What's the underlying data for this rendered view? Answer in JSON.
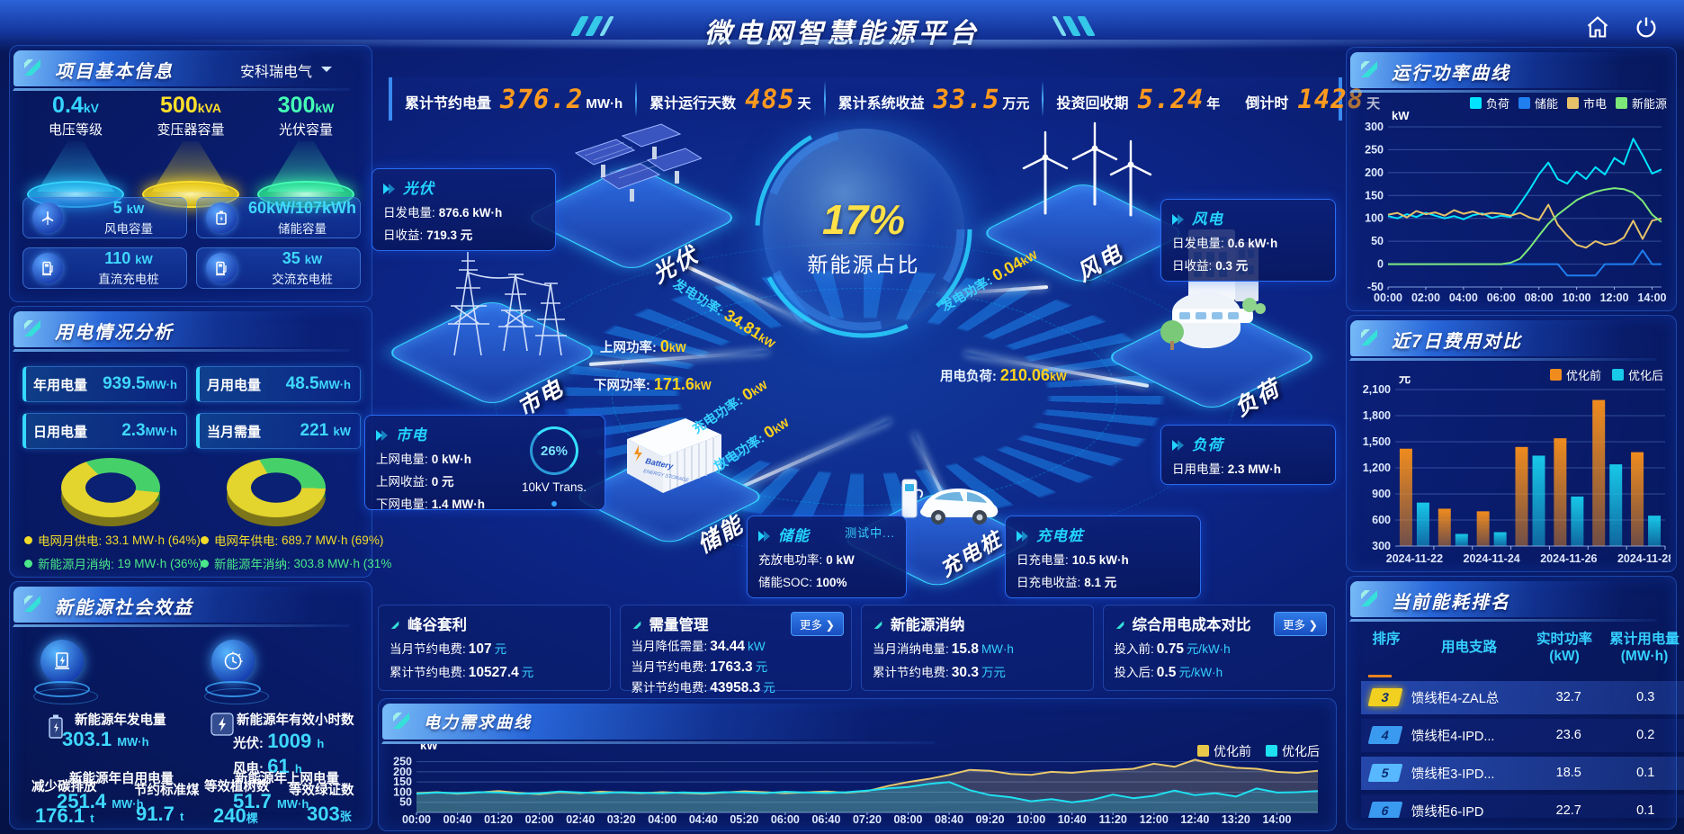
{
  "header": {
    "title": "微电网智慧能源平台"
  },
  "kpi_bar": [
    {
      "label": "累计节约电量",
      "value": "376.2",
      "unit": "MW·h"
    },
    {
      "label": "累计运行天数",
      "value": "485",
      "unit": "天"
    },
    {
      "label": "累计系统收益",
      "value": "33.5",
      "unit": "万元"
    },
    {
      "label": "投资回收期",
      "value": "5.24",
      "unit": "年"
    },
    {
      "label": "倒计时",
      "value": "1428",
      "unit": "天"
    }
  ],
  "project_info": {
    "title": "项目基本信息",
    "company": "安科瑞电气",
    "spotlights": [
      {
        "value": "0.4",
        "unit": "kV",
        "label": "电压等级",
        "color": "#35d4ff"
      },
      {
        "value": "500",
        "unit": "kVA",
        "label": "变压器容量",
        "color": "#ffe02a"
      },
      {
        "value": "300",
        "unit": "kW",
        "label": "光伏容量",
        "color": "#45ffb5"
      }
    ],
    "cards": [
      {
        "value": "5",
        "unit": "kW",
        "label": "风电容量"
      },
      {
        "value": "60kW/107kWh",
        "unit": "",
        "label": "储能容量"
      },
      {
        "value": "110",
        "unit": "kW",
        "label": "直流充电桩"
      },
      {
        "value": "35",
        "unit": "kW",
        "label": "交流充电桩"
      }
    ]
  },
  "power_analysis": {
    "title": "用电情况分析",
    "stats": [
      {
        "label": "年用电量",
        "value": "939.5",
        "unit": "MW·h"
      },
      {
        "label": "月用电量",
        "value": "48.5",
        "unit": "MW·h"
      },
      {
        "label": "日用电量",
        "value": "2.3",
        "unit": "MW·h"
      },
      {
        "label": "当月需量",
        "value": "221",
        "unit": "kW"
      }
    ],
    "month_donut": {
      "grid_pct": 64,
      "renewable_pct": 36
    },
    "year_donut": {
      "grid_pct": 69,
      "renewable_pct": 31
    },
    "legends": [
      {
        "label": "电网月供电:",
        "value": "33.1 MW·h (64%)",
        "color": "#f2dc2a"
      },
      {
        "label": "电网年供电:",
        "value": "689.7 MW·h (69%)",
        "color": "#f2dc2a"
      },
      {
        "label": "新能源月消纳:",
        "value": "19 MW·h (36%)",
        "color": "#4ae88a"
      },
      {
        "label": "新能源年消纳:",
        "value": "303.8 MW·h (31%",
        "color": "#4ae88a"
      }
    ]
  },
  "social_benefit": {
    "title": "新能源社会效益",
    "gen": {
      "label": "新能源年发电量",
      "value": "303.1",
      "unit": "MW·h"
    },
    "hours": {
      "label": "新能源年有效小时数",
      "pv_label": "光伏:",
      "pv_value": "1009",
      "pv_unit": "h",
      "wind_label": "风电:",
      "wind_value": "61",
      "wind_unit": "h"
    },
    "self_use": {
      "label": "新能源年自用电量",
      "value": "251.4",
      "unit": "MW·h"
    },
    "co2": {
      "label": "减少碳排放",
      "value": "176.1",
      "unit": "t"
    },
    "coal": {
      "label": "节约标准煤",
      "value": "91.7",
      "unit": "t"
    },
    "to_grid": {
      "label": "新能源年上网电量",
      "value": "51.7",
      "unit": "MW·h"
    },
    "trees": {
      "label": "等效植树数",
      "value": "240",
      "unit": "棵"
    },
    "certs": {
      "label": "等效绿证数",
      "value": "303",
      "unit": "张"
    }
  },
  "diagram": {
    "center": {
      "value": "17%",
      "label": "新能源占比"
    },
    "nodes": {
      "pv": "光伏",
      "wind": "风电",
      "grid": "市电",
      "storage": "储能",
      "charger": "充电桩",
      "load": "负荷"
    },
    "boxes": {
      "pv": {
        "title": "光伏",
        "lines": [
          {
            "k": "日发电量:",
            "v": "876.6 kW·h"
          },
          {
            "k": "日收益:",
            "v": "719.3 元"
          }
        ]
      },
      "wind": {
        "title": "风电",
        "lines": [
          {
            "k": "日发电量:",
            "v": "0.6 kW·h"
          },
          {
            "k": "日收益:",
            "v": "0.3 元"
          }
        ]
      },
      "grid": {
        "title": "市电",
        "lines": [
          {
            "k": "上网电量:",
            "v": "0 kW·h"
          },
          {
            "k": "上网收益:",
            "v": "0 元"
          },
          {
            "k": "下网电量:",
            "v": "1.4 MW·h"
          }
        ]
      },
      "storage": {
        "title": "储能",
        "badge": "测试中...",
        "lines": [
          {
            "k": "充放电功率:",
            "v": "0 kW"
          },
          {
            "k": "储能SOC:",
            "v": "100%"
          }
        ]
      },
      "charger": {
        "title": "充电桩",
        "lines": [
          {
            "k": "日充电量:",
            "v": "10.5 kW·h"
          },
          {
            "k": "日充电收益:",
            "v": "8.1 元"
          }
        ]
      },
      "load": {
        "title": "负荷",
        "lines": [
          {
            "k": "日用电量:",
            "v": "2.3 MW·h"
          }
        ]
      }
    },
    "flows": {
      "pv_gen": {
        "label": "发电功率:",
        "value": "34.81",
        "unit": "kW"
      },
      "wind_gen": {
        "label": "发电功率:",
        "value": "0.04",
        "unit": "kW"
      },
      "up_grid": {
        "label": "上网功率:",
        "value": "0",
        "unit": "kW"
      },
      "down_grid": {
        "label": "下网功率:",
        "value": "171.6",
        "unit": "kW"
      },
      "load_power": {
        "label": "用电负荷:",
        "value": "210.06",
        "unit": "kW"
      },
      "charge": {
        "label": "充电功率:",
        "value": "0",
        "unit": "kW"
      },
      "discharge": {
        "label": "放电功率:",
        "value": "0",
        "unit": "kW"
      }
    },
    "transformer": {
      "pct": "26%",
      "label": "10kV Trans."
    }
  },
  "mini_panels": [
    {
      "title": "峰谷套利",
      "rows": [
        {
          "k": "当月节约电费:",
          "v": "107",
          "u": "元"
        },
        {
          "k": "累计节约电费:",
          "v": "10527.4",
          "u": "元"
        }
      ]
    },
    {
      "title": "需量管理",
      "more": "更多",
      "rows": [
        {
          "k": "当月降低需量:",
          "v": "34.44",
          "u": "kW"
        },
        {
          "k": "当月节约电费:",
          "v": "1763.3",
          "u": "元"
        },
        {
          "k": "累计节约电费:",
          "v": "43958.3",
          "u": "元"
        }
      ]
    },
    {
      "title": "新能源消纳",
      "rows": [
        {
          "k": "当月消纳电量:",
          "v": "15.8",
          "u": "MW·h"
        },
        {
          "k": "累计节约电费:",
          "v": "30.3",
          "u": "万元"
        }
      ]
    },
    {
      "title": "综合用电成本对比",
      "more": "更多",
      "rows": [
        {
          "k": "投入前:",
          "v": "0.75",
          "u": "元/kW·h"
        },
        {
          "k": "投入后:",
          "v": "0.5",
          "u": "元/kW·h"
        }
      ]
    }
  ],
  "panel_titles": {
    "run_power": "运行功率曲线",
    "cost_compare": "近7日费用对比",
    "ranking": "当前能耗排名",
    "demand": "电力需求曲线"
  },
  "ranking": {
    "headers": {
      "rank": "排序",
      "branch": "用电支路",
      "power": "实时功率",
      "power_unit": "(kW)",
      "energy": "累计用电量",
      "energy_unit": "(MW·h)"
    },
    "rows": [
      {
        "rank": "3",
        "branch": "馈线柜4-ZAL总",
        "power": "32.7",
        "energy": "0.3"
      },
      {
        "rank": "4",
        "branch": "馈线柜4-IPD...",
        "power": "23.6",
        "energy": "0.2"
      },
      {
        "rank": "5",
        "branch": "馈线柜3-IPD...",
        "power": "18.5",
        "energy": "0.1"
      },
      {
        "rank": "6",
        "branch": "馈线柜6-IPD",
        "power": "22.7",
        "energy": "0.1"
      }
    ]
  },
  "chart_data": [
    {
      "id": "run_power",
      "type": "line",
      "title": "运行功率曲线",
      "ylabel": "kW",
      "ylim": [
        -50,
        300
      ],
      "yticks": [
        300,
        250,
        200,
        150,
        100,
        50,
        0,
        -50
      ],
      "xmax": 14.5,
      "x_step": 0.5,
      "xticks": [
        "00:00",
        "02:00",
        "04:00",
        "06:00",
        "08:00",
        "10:00",
        "12:00",
        "14:00"
      ],
      "xtick_values": [
        0,
        2,
        4,
        6,
        8,
        10,
        12,
        14
      ],
      "legend_position": "top",
      "grid": true,
      "series": [
        {
          "name": "负荷",
          "color": "#00e4ff",
          "values": [
            105,
            100,
            109,
            103,
            112,
            106,
            100,
            105,
            98,
            107,
            111,
            101,
            106,
            103,
            132,
            162,
            196,
            222,
            186,
            176,
            202,
            186,
            212,
            196,
            232,
            218,
            274,
            238,
            198,
            207
          ]
        },
        {
          "name": "储能",
          "color": "#1f7ef0",
          "values": [
            0,
            0,
            0,
            0,
            0,
            0,
            0,
            0,
            0,
            0,
            0,
            0,
            0,
            0,
            0,
            0,
            0,
            0,
            0,
            -25,
            -25,
            -25,
            -25,
            0,
            0,
            0,
            0,
            30,
            0,
            0
          ]
        },
        {
          "name": "市电",
          "color": "#e6c36a",
          "values": [
            108,
            112,
            102,
            116,
            109,
            113,
            106,
            118,
            110,
            115,
            108,
            112,
            110,
            106,
            112,
            102,
            96,
            130,
            86,
            62,
            42,
            36,
            50,
            42,
            46,
            58,
            95,
            55,
            95,
            100
          ]
        },
        {
          "name": "新能源",
          "color": "#7de87a",
          "values": [
            0,
            0,
            0,
            0,
            0,
            0,
            0,
            0,
            0,
            0,
            0,
            0,
            0,
            3,
            12,
            35,
            62,
            88,
            108,
            124,
            140,
            150,
            158,
            163,
            166,
            164,
            156,
            138,
            108,
            92
          ]
        }
      ]
    },
    {
      "id": "cost_compare",
      "type": "bar",
      "title": "近7日费用对比",
      "ylabel": "元",
      "ylim": [
        300,
        2100
      ],
      "yticks": [
        2100,
        1800,
        1500,
        1200,
        900,
        600,
        300
      ],
      "categories": [
        "2024-11-22",
        "2024-11-23",
        "2024-11-24",
        "2024-11-25",
        "2024-11-26",
        "2024-11-27",
        "2024-11-28"
      ],
      "xticks_shown": [
        "2024-11-22",
        "2024-11-24",
        "2024-11-26",
        "2024-11-28"
      ],
      "legend_position": "top",
      "grid": true,
      "series": [
        {
          "name": "优化前",
          "color": "#f08c1e",
          "values": [
            1420,
            730,
            700,
            1440,
            1540,
            1980,
            1380
          ]
        },
        {
          "name": "优化后",
          "color": "#18c8e8",
          "values": [
            800,
            440,
            460,
            1340,
            870,
            1240,
            650
          ]
        }
      ]
    },
    {
      "id": "demand",
      "type": "area",
      "title": "电力需求曲线",
      "ylabel": "kW",
      "ylim": [
        0,
        275
      ],
      "yticks": [
        250,
        200,
        150,
        100,
        50
      ],
      "xmax": 14.667,
      "x_step": 0.33333,
      "xticks": [
        "00:00",
        "00:40",
        "01:20",
        "02:00",
        "02:40",
        "03:20",
        "04:00",
        "04:40",
        "05:20",
        "06:00",
        "06:40",
        "07:20",
        "08:00",
        "08:40",
        "09:20",
        "10:00",
        "10:40",
        "11:20",
        "12:00",
        "12:40",
        "13:20",
        "14:00"
      ],
      "xtick_values": [
        0,
        0.667,
        1.333,
        2,
        2.667,
        3.333,
        4,
        4.667,
        5.333,
        6,
        6.667,
        7.333,
        8,
        8.667,
        9.333,
        10,
        10.667,
        11.333,
        12,
        12.667,
        13.333,
        14
      ],
      "legend_position": "top-right",
      "grid": true,
      "series": [
        {
          "name": "优化前",
          "color": "#e8c86a",
          "values": [
            95,
            100,
            92,
            98,
            105,
            96,
            90,
            100,
            95,
            102,
            98,
            95,
            100,
            96,
            92,
            98,
            104,
            100,
            95,
            99,
            103,
            97,
            105,
            130,
            150,
            165,
            185,
            210,
            205,
            190,
            185,
            200,
            195,
            205,
            210,
            215,
            240,
            225,
            260,
            235,
            220,
            215,
            200,
            195,
            205
          ]
        },
        {
          "name": "优化后",
          "color": "#1ee0f0",
          "values": [
            92,
            98,
            95,
            100,
            98,
            92,
            95,
            103,
            98,
            95,
            100,
            97,
            94,
            99,
            96,
            100,
            98,
            95,
            102,
            98,
            96,
            100,
            108,
            118,
            125,
            140,
            150,
            110,
            85,
            75,
            55,
            65,
            50,
            62,
            88,
            70,
            82,
            108,
            85,
            95,
            78,
            118,
            98,
            100,
            105
          ]
        }
      ]
    }
  ]
}
